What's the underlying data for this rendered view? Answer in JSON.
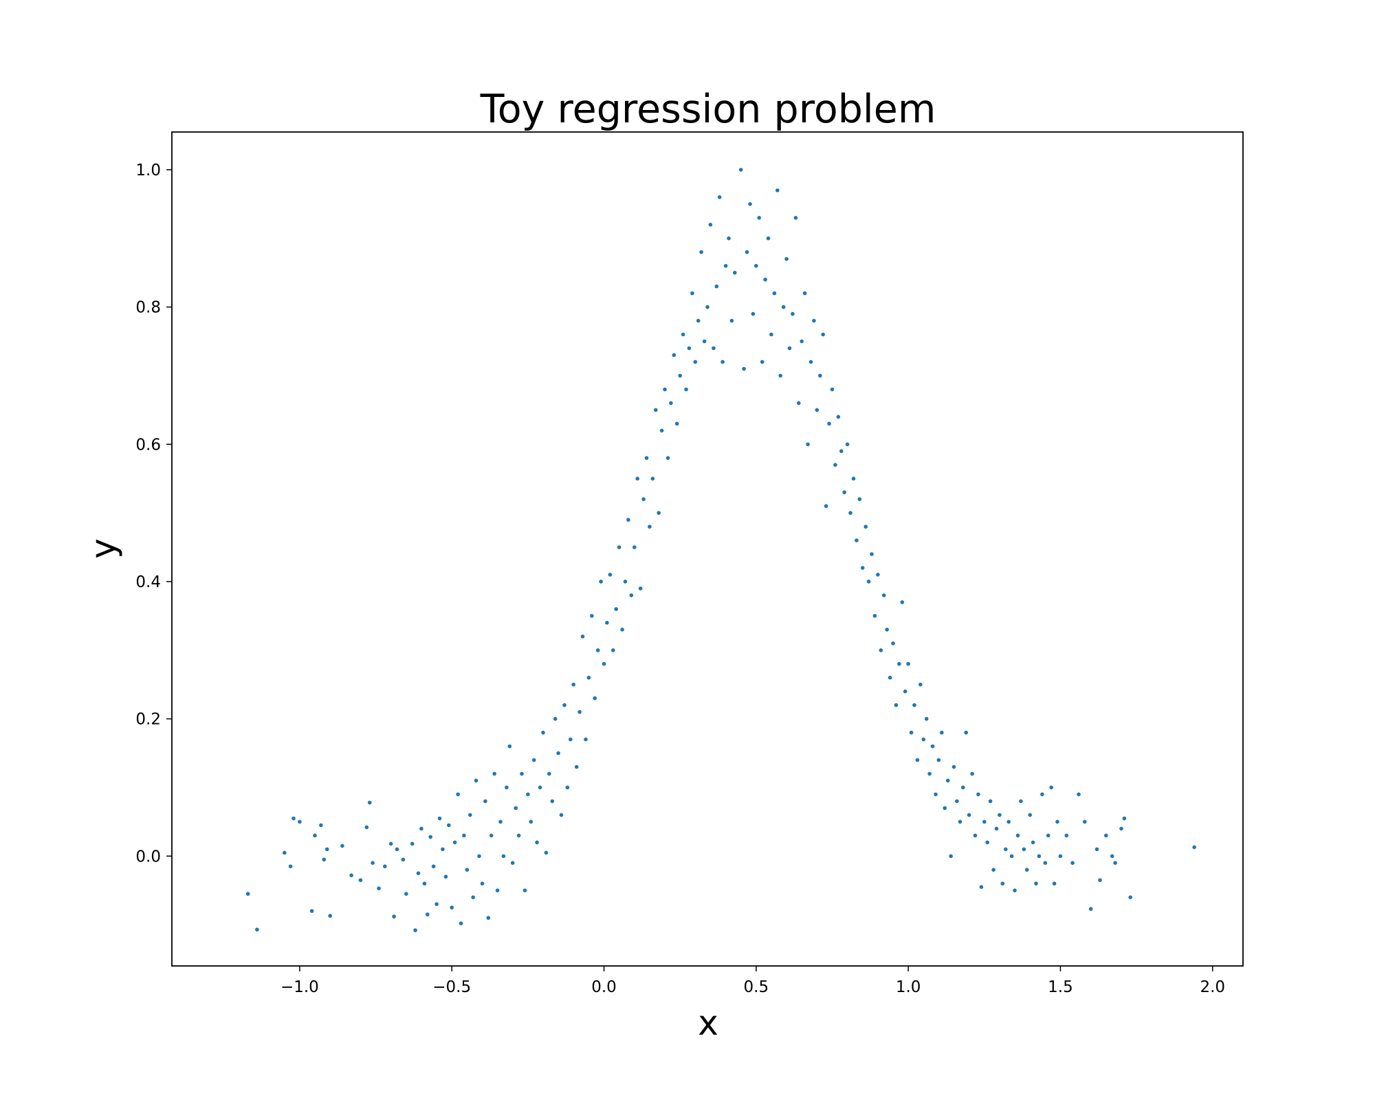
{
  "chart_data": {
    "type": "scatter",
    "title": "Toy regression problem",
    "xlabel": "x",
    "ylabel": "y",
    "xlim": [
      -1.42,
      2.1
    ],
    "ylim": [
      -0.16,
      1.055
    ],
    "grid": false,
    "legend": "none",
    "marker_color": "#1f77b4",
    "x_ticks": [
      {
        "value": -1.0,
        "label": "−1.0"
      },
      {
        "value": -0.5,
        "label": "−0.5"
      },
      {
        "value": 0.0,
        "label": "0.0"
      },
      {
        "value": 0.5,
        "label": "0.5"
      },
      {
        "value": 1.0,
        "label": "1.0"
      },
      {
        "value": 1.5,
        "label": "1.5"
      },
      {
        "value": 2.0,
        "label": "2.0"
      }
    ],
    "y_ticks": [
      {
        "value": 0.0,
        "label": "0.0"
      },
      {
        "value": 0.2,
        "label": "0.2"
      },
      {
        "value": 0.4,
        "label": "0.4"
      },
      {
        "value": 0.6,
        "label": "0.6"
      },
      {
        "value": 0.8,
        "label": "0.8"
      },
      {
        "value": 1.0,
        "label": "1.0"
      }
    ],
    "series": [
      {
        "points": [
          [
            -1.17,
            -0.055
          ],
          [
            -1.14,
            -0.107
          ],
          [
            -1.05,
            0.005
          ],
          [
            -1.03,
            -0.015
          ],
          [
            -1.02,
            0.055
          ],
          [
            -1.0,
            0.05
          ],
          [
            -0.96,
            -0.08
          ],
          [
            -0.95,
            0.03
          ],
          [
            -0.93,
            0.045
          ],
          [
            -0.92,
            -0.005
          ],
          [
            -0.91,
            0.01
          ],
          [
            -0.9,
            -0.087
          ],
          [
            -0.86,
            0.015
          ],
          [
            -0.83,
            -0.028
          ],
          [
            -0.8,
            -0.035
          ],
          [
            -0.78,
            0.042
          ],
          [
            -0.77,
            0.078
          ],
          [
            -0.76,
            -0.01
          ],
          [
            -0.74,
            -0.047
          ],
          [
            -0.72,
            -0.015
          ],
          [
            -0.7,
            0.018
          ],
          [
            -0.69,
            -0.088
          ],
          [
            -0.68,
            0.01
          ],
          [
            -0.66,
            -0.005
          ],
          [
            -0.65,
            -0.055
          ],
          [
            -0.63,
            0.018
          ],
          [
            -0.62,
            -0.108
          ],
          [
            -0.61,
            -0.025
          ],
          [
            -0.6,
            0.04
          ],
          [
            -0.59,
            -0.04
          ],
          [
            -0.58,
            -0.085
          ],
          [
            -0.57,
            0.028
          ],
          [
            -0.56,
            -0.015
          ],
          [
            -0.55,
            -0.07
          ],
          [
            -0.54,
            0.055
          ],
          [
            -0.53,
            0.01
          ],
          [
            -0.52,
            -0.03
          ],
          [
            -0.51,
            0.045
          ],
          [
            -0.5,
            -0.075
          ],
          [
            -0.49,
            0.02
          ],
          [
            -0.48,
            0.09
          ],
          [
            -0.47,
            -0.098
          ],
          [
            -0.46,
            0.03
          ],
          [
            -0.45,
            -0.02
          ],
          [
            -0.44,
            0.06
          ],
          [
            -0.43,
            -0.06
          ],
          [
            -0.42,
            0.11
          ],
          [
            -0.41,
            0.0
          ],
          [
            -0.4,
            -0.04
          ],
          [
            -0.39,
            0.08
          ],
          [
            -0.38,
            -0.09
          ],
          [
            -0.37,
            0.03
          ],
          [
            -0.36,
            0.12
          ],
          [
            -0.35,
            -0.05
          ],
          [
            -0.34,
            0.05
          ],
          [
            -0.33,
            0.0
          ],
          [
            -0.32,
            0.1
          ],
          [
            -0.31,
            0.16
          ],
          [
            -0.3,
            -0.01
          ],
          [
            -0.29,
            0.07
          ],
          [
            -0.28,
            0.03
          ],
          [
            -0.27,
            0.12
          ],
          [
            -0.26,
            -0.05
          ],
          [
            -0.25,
            0.09
          ],
          [
            -0.24,
            0.05
          ],
          [
            -0.23,
            0.14
          ],
          [
            -0.22,
            0.02
          ],
          [
            -0.21,
            0.1
          ],
          [
            -0.2,
            0.18
          ],
          [
            -0.19,
            0.005
          ],
          [
            -0.18,
            0.12
          ],
          [
            -0.17,
            0.08
          ],
          [
            -0.16,
            0.2
          ],
          [
            -0.15,
            0.15
          ],
          [
            -0.14,
            0.06
          ],
          [
            -0.13,
            0.22
          ],
          [
            -0.12,
            0.1
          ],
          [
            -0.11,
            0.17
          ],
          [
            -0.1,
            0.25
          ],
          [
            -0.09,
            0.13
          ],
          [
            -0.08,
            0.21
          ],
          [
            -0.07,
            0.32
          ],
          [
            -0.06,
            0.17
          ],
          [
            -0.05,
            0.26
          ],
          [
            -0.04,
            0.35
          ],
          [
            -0.03,
            0.23
          ],
          [
            -0.02,
            0.3
          ],
          [
            -0.01,
            0.4
          ],
          [
            0.0,
            0.28
          ],
          [
            0.01,
            0.34
          ],
          [
            0.02,
            0.41
          ],
          [
            0.03,
            0.3
          ],
          [
            0.04,
            0.36
          ],
          [
            0.05,
            0.45
          ],
          [
            0.06,
            0.33
          ],
          [
            0.07,
            0.4
          ],
          [
            0.08,
            0.49
          ],
          [
            0.09,
            0.38
          ],
          [
            0.1,
            0.45
          ],
          [
            0.11,
            0.55
          ],
          [
            0.12,
            0.39
          ],
          [
            0.13,
            0.52
          ],
          [
            0.14,
            0.58
          ],
          [
            0.15,
            0.48
          ],
          [
            0.16,
            0.55
          ],
          [
            0.17,
            0.65
          ],
          [
            0.18,
            0.5
          ],
          [
            0.19,
            0.62
          ],
          [
            0.2,
            0.68
          ],
          [
            0.21,
            0.58
          ],
          [
            0.22,
            0.66
          ],
          [
            0.23,
            0.73
          ],
          [
            0.24,
            0.63
          ],
          [
            0.25,
            0.7
          ],
          [
            0.26,
            0.76
          ],
          [
            0.27,
            0.68
          ],
          [
            0.28,
            0.74
          ],
          [
            0.29,
            0.82
          ],
          [
            0.3,
            0.72
          ],
          [
            0.31,
            0.78
          ],
          [
            0.32,
            0.88
          ],
          [
            0.33,
            0.75
          ],
          [
            0.34,
            0.8
          ],
          [
            0.35,
            0.92
          ],
          [
            0.36,
            0.74
          ],
          [
            0.37,
            0.83
          ],
          [
            0.38,
            0.96
          ],
          [
            0.39,
            0.72
          ],
          [
            0.4,
            0.86
          ],
          [
            0.41,
            0.9
          ],
          [
            0.42,
            0.78
          ],
          [
            0.43,
            0.85
          ],
          [
            0.45,
            1.0
          ],
          [
            0.46,
            0.71
          ],
          [
            0.47,
            0.88
          ],
          [
            0.48,
            0.95
          ],
          [
            0.49,
            0.79
          ],
          [
            0.5,
            0.86
          ],
          [
            0.51,
            0.93
          ],
          [
            0.52,
            0.72
          ],
          [
            0.53,
            0.84
          ],
          [
            0.54,
            0.9
          ],
          [
            0.55,
            0.76
          ],
          [
            0.56,
            0.82
          ],
          [
            0.57,
            0.97
          ],
          [
            0.58,
            0.7
          ],
          [
            0.59,
            0.8
          ],
          [
            0.6,
            0.87
          ],
          [
            0.61,
            0.74
          ],
          [
            0.62,
            0.79
          ],
          [
            0.63,
            0.93
          ],
          [
            0.64,
            0.66
          ],
          [
            0.65,
            0.75
          ],
          [
            0.66,
            0.82
          ],
          [
            0.67,
            0.6
          ],
          [
            0.68,
            0.72
          ],
          [
            0.69,
            0.78
          ],
          [
            0.7,
            0.65
          ],
          [
            0.71,
            0.7
          ],
          [
            0.72,
            0.76
          ],
          [
            0.73,
            0.51
          ],
          [
            0.74,
            0.63
          ],
          [
            0.75,
            0.68
          ],
          [
            0.76,
            0.57
          ],
          [
            0.77,
            0.64
          ],
          [
            0.78,
            0.59
          ],
          [
            0.79,
            0.53
          ],
          [
            0.8,
            0.6
          ],
          [
            0.81,
            0.5
          ],
          [
            0.82,
            0.55
          ],
          [
            0.83,
            0.46
          ],
          [
            0.84,
            0.52
          ],
          [
            0.85,
            0.42
          ],
          [
            0.86,
            0.48
          ],
          [
            0.87,
            0.4
          ],
          [
            0.88,
            0.44
          ],
          [
            0.89,
            0.35
          ],
          [
            0.9,
            0.41
          ],
          [
            0.91,
            0.3
          ],
          [
            0.92,
            0.38
          ],
          [
            0.93,
            0.33
          ],
          [
            0.94,
            0.26
          ],
          [
            0.95,
            0.31
          ],
          [
            0.96,
            0.22
          ],
          [
            0.97,
            0.28
          ],
          [
            0.98,
            0.37
          ],
          [
            0.99,
            0.24
          ],
          [
            1.0,
            0.28
          ],
          [
            1.01,
            0.18
          ],
          [
            1.02,
            0.22
          ],
          [
            1.03,
            0.14
          ],
          [
            1.04,
            0.25
          ],
          [
            1.05,
            0.17
          ],
          [
            1.06,
            0.2
          ],
          [
            1.07,
            0.12
          ],
          [
            1.08,
            0.16
          ],
          [
            1.09,
            0.09
          ],
          [
            1.1,
            0.14
          ],
          [
            1.11,
            0.18
          ],
          [
            1.12,
            0.07
          ],
          [
            1.13,
            0.11
          ],
          [
            1.14,
            0.0
          ],
          [
            1.15,
            0.13
          ],
          [
            1.16,
            0.08
          ],
          [
            1.17,
            0.05
          ],
          [
            1.18,
            0.1
          ],
          [
            1.19,
            0.18
          ],
          [
            1.2,
            0.06
          ],
          [
            1.21,
            0.12
          ],
          [
            1.22,
            0.03
          ],
          [
            1.23,
            0.09
          ],
          [
            1.24,
            -0.045
          ],
          [
            1.25,
            0.05
          ],
          [
            1.26,
            0.02
          ],
          [
            1.27,
            0.08
          ],
          [
            1.28,
            -0.02
          ],
          [
            1.29,
            0.04
          ],
          [
            1.3,
            0.06
          ],
          [
            1.31,
            -0.04
          ],
          [
            1.32,
            0.01
          ],
          [
            1.33,
            0.05
          ],
          [
            1.34,
            0.0
          ],
          [
            1.35,
            -0.05
          ],
          [
            1.36,
            0.03
          ],
          [
            1.37,
            0.08
          ],
          [
            1.38,
            0.01
          ],
          [
            1.39,
            -0.02
          ],
          [
            1.4,
            0.06
          ],
          [
            1.41,
            0.02
          ],
          [
            1.42,
            -0.04
          ],
          [
            1.43,
            0.0
          ],
          [
            1.44,
            0.09
          ],
          [
            1.45,
            -0.01
          ],
          [
            1.46,
            0.03
          ],
          [
            1.47,
            0.1
          ],
          [
            1.48,
            -0.04
          ],
          [
            1.49,
            0.05
          ],
          [
            1.5,
            0.0
          ],
          [
            1.52,
            0.03
          ],
          [
            1.54,
            -0.01
          ],
          [
            1.56,
            0.09
          ],
          [
            1.58,
            0.05
          ],
          [
            1.6,
            -0.077
          ],
          [
            1.62,
            0.01
          ],
          [
            1.63,
            -0.035
          ],
          [
            1.65,
            0.03
          ],
          [
            1.67,
            0.0
          ],
          [
            1.68,
            -0.01
          ],
          [
            1.7,
            0.04
          ],
          [
            1.71,
            0.055
          ],
          [
            1.73,
            -0.06
          ],
          [
            1.94,
            0.013
          ]
        ]
      }
    ]
  }
}
